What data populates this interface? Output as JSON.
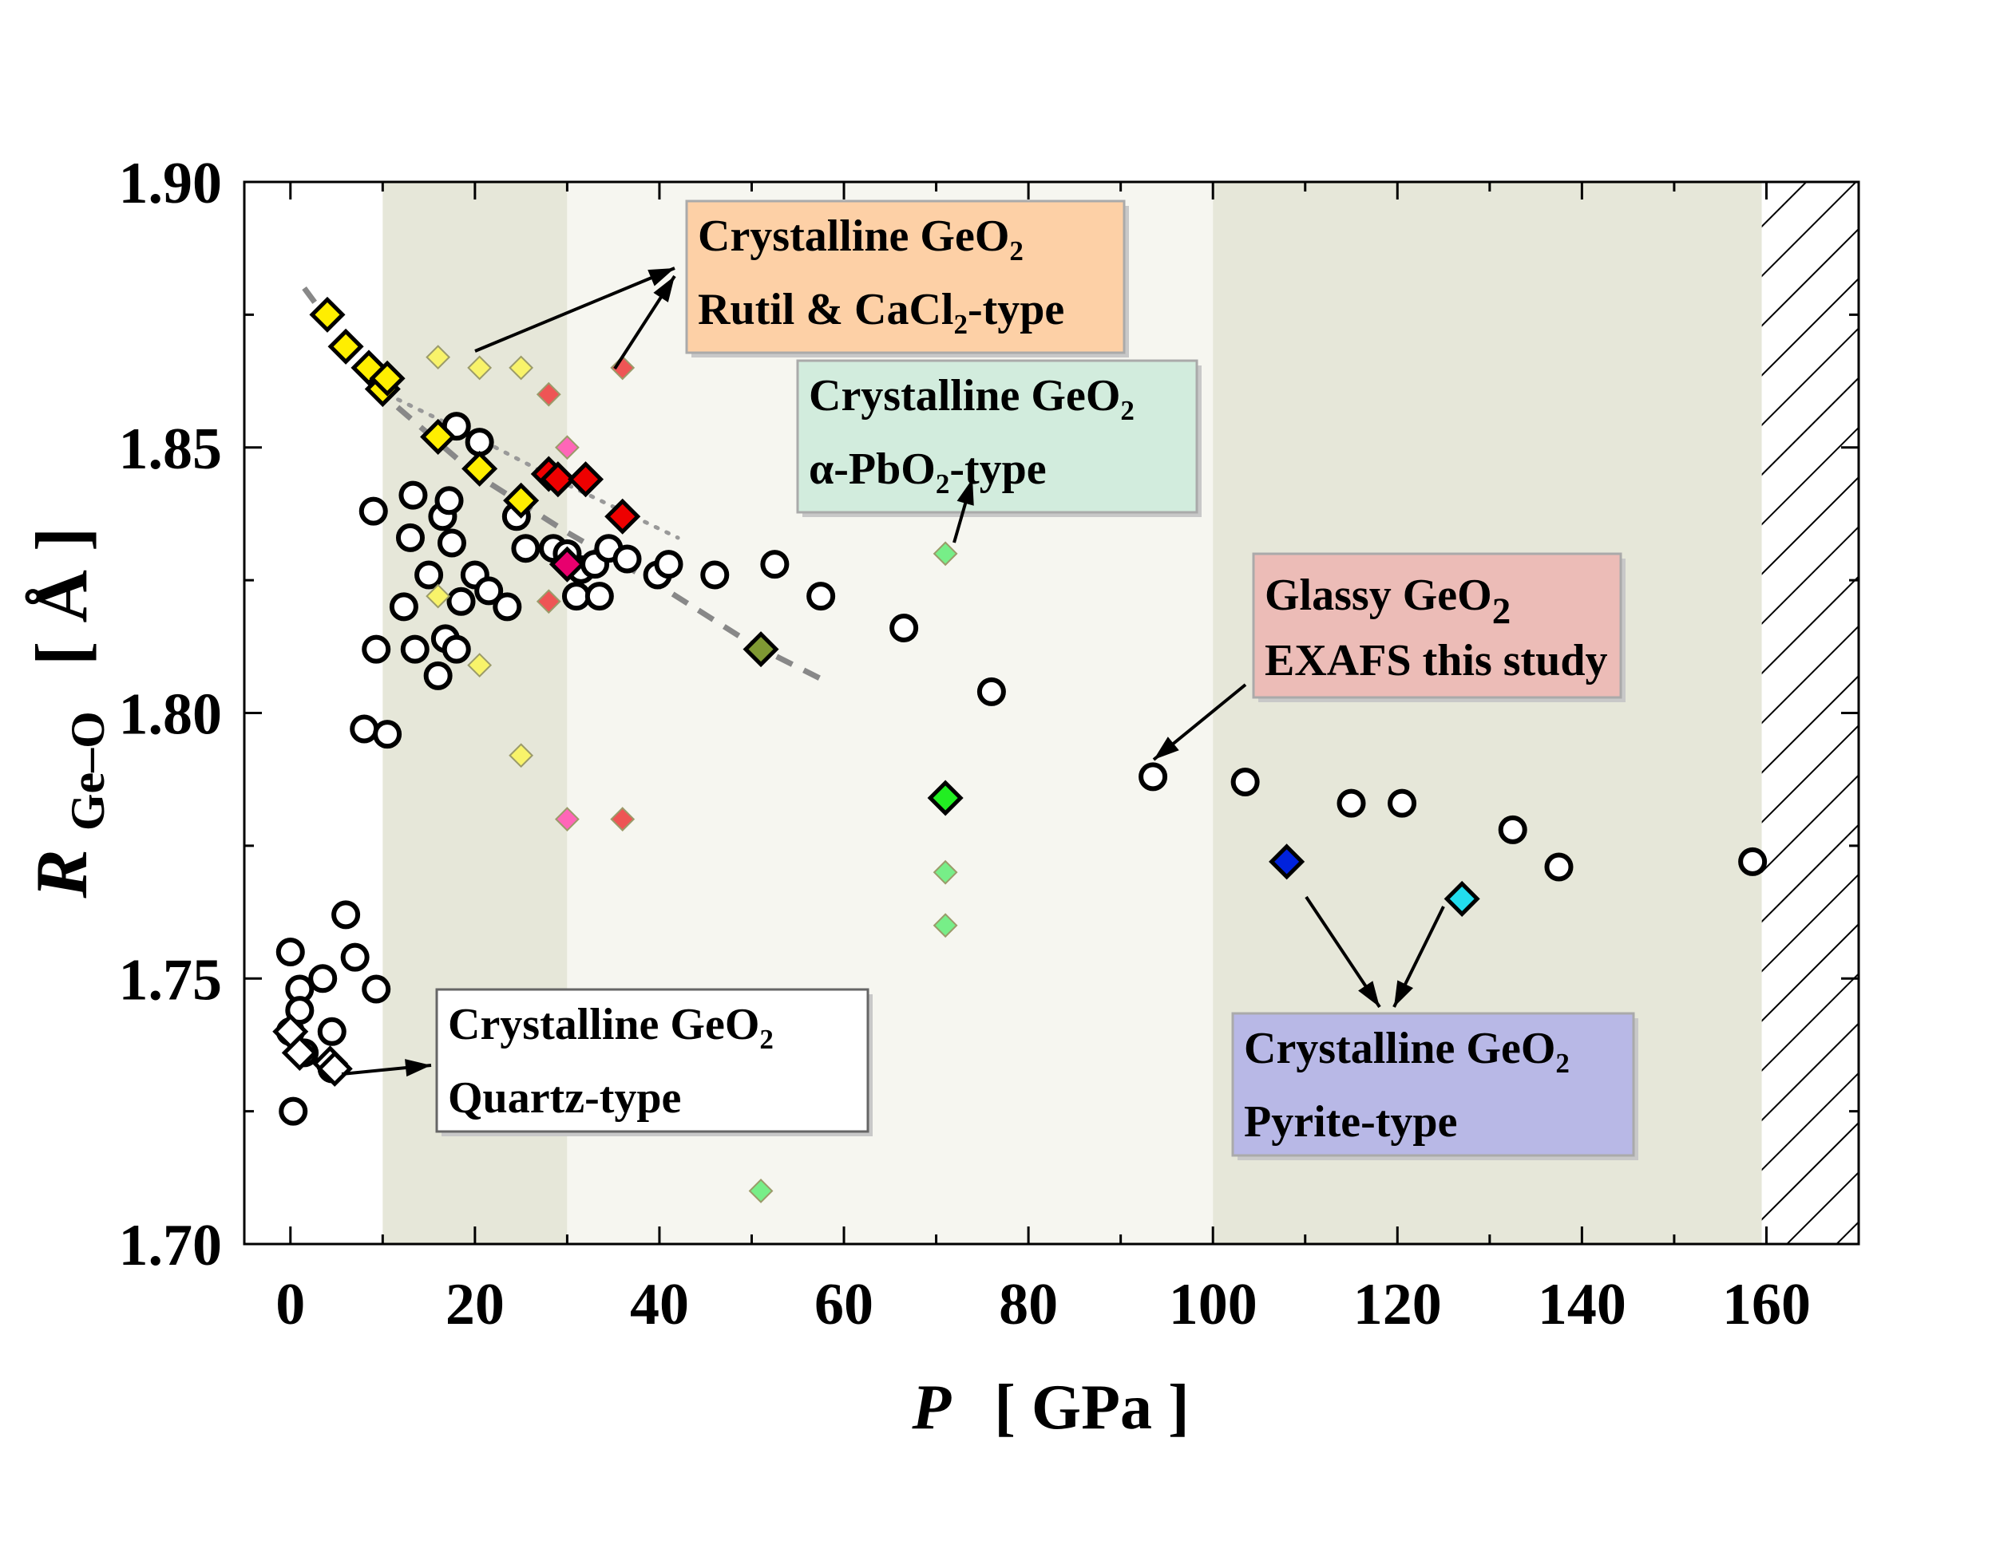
{
  "chart_data": {
    "type": "scatter",
    "xlabel": "P",
    "xunit": "[ GPa ]",
    "ylabel_main": "R",
    "ylabel_sub": "Ge–O",
    "yunit": "[ Å ]",
    "xlim": [
      -5,
      170
    ],
    "ylim": [
      1.7,
      1.9
    ],
    "xticks": [
      0,
      20,
      40,
      60,
      80,
      100,
      120,
      140,
      160
    ],
    "yticks": [
      1.7,
      1.75,
      1.8,
      1.85,
      1.9
    ],
    "ytick_labels": [
      "1.70",
      "1.75",
      "1.80",
      "1.85",
      "1.90"
    ],
    "regions": [
      {
        "name": "band-1",
        "x0": 10,
        "x1": 30,
        "color": "#e6e7d9"
      },
      {
        "name": "band-2",
        "x0": 30,
        "x1": 100,
        "color": "#f6f6f0"
      },
      {
        "name": "band-3",
        "x0": 100,
        "x1": 159.5,
        "color": "#e6e7d9"
      },
      {
        "name": "band-hatched",
        "x0": 159.5,
        "x1": 170,
        "color": "#ffffff",
        "hatched": true
      }
    ],
    "series": [
      {
        "name": "Glassy GeO2 (open circles)",
        "marker": "circle",
        "points": [
          [
            0,
            1.755
          ],
          [
            0,
            1.74
          ],
          [
            0.3,
            1.725
          ],
          [
            1,
            1.748
          ],
          [
            1,
            1.744
          ],
          [
            1.5,
            1.736
          ],
          [
            3.5,
            1.75
          ],
          [
            4.5,
            1.74
          ],
          [
            4.5,
            1.733
          ],
          [
            6,
            1.762
          ],
          [
            7,
            1.754
          ],
          [
            9.3,
            1.748
          ],
          [
            8,
            1.797
          ],
          [
            10.5,
            1.796
          ],
          [
            9.3,
            1.812
          ],
          [
            9,
            1.838
          ],
          [
            12.3,
            1.82
          ],
          [
            13,
            1.833
          ],
          [
            13.3,
            1.841
          ],
          [
            13.5,
            1.812
          ],
          [
            15,
            1.826
          ],
          [
            16,
            1.807
          ],
          [
            16.5,
            1.837
          ],
          [
            16.8,
            1.814
          ],
          [
            17.2,
            1.84
          ],
          [
            17.5,
            1.832
          ],
          [
            18,
            1.854
          ],
          [
            18,
            1.812
          ],
          [
            18.5,
            1.821
          ],
          [
            20,
            1.826
          ],
          [
            20.5,
            1.851
          ],
          [
            21.5,
            1.823
          ],
          [
            23.5,
            1.82
          ],
          [
            24.5,
            1.837
          ],
          [
            25.5,
            1.831
          ],
          [
            28.5,
            1.831
          ],
          [
            30,
            1.83
          ],
          [
            31,
            1.822
          ],
          [
            31.5,
            1.827
          ],
          [
            33,
            1.828
          ],
          [
            33.5,
            1.822
          ],
          [
            34.5,
            1.831
          ],
          [
            36.5,
            1.829
          ],
          [
            39.8,
            1.826
          ],
          [
            41,
            1.828
          ],
          [
            46,
            1.826
          ],
          [
            52.5,
            1.828
          ],
          [
            57.5,
            1.822
          ],
          [
            66.5,
            1.816
          ],
          [
            76,
            1.804
          ],
          [
            93.5,
            1.788
          ],
          [
            103.5,
            1.787
          ],
          [
            115,
            1.783
          ],
          [
            120.5,
            1.783
          ],
          [
            132.5,
            1.778
          ],
          [
            137.5,
            1.771
          ],
          [
            158.5,
            1.772
          ]
        ]
      },
      {
        "name": "Quartz-type (open diamonds)",
        "marker": "diamond",
        "points": [
          [
            0,
            1.74
          ],
          [
            1,
            1.736
          ],
          [
            4.3,
            1.734
          ],
          [
            4.8,
            1.733
          ]
        ]
      },
      {
        "name": "Rutil & CaCl2-type (yellow diamonds, bold)",
        "marker": "diamond",
        "color": "#ffee00",
        "points": [
          [
            4,
            1.875
          ],
          [
            6,
            1.869
          ],
          [
            8.5,
            1.865
          ],
          [
            10,
            1.861
          ],
          [
            10.5,
            1.863
          ],
          [
            16,
            1.852
          ],
          [
            20.5,
            1.846
          ],
          [
            25,
            1.84
          ]
        ]
      },
      {
        "name": "Rutil & CaCl2-type (yellow diamonds, light)",
        "marker": "diamond-small",
        "color": "#f8f36a",
        "points": [
          [
            16,
            1.867
          ],
          [
            20.5,
            1.865
          ],
          [
            25,
            1.865
          ],
          [
            16,
            1.822
          ],
          [
            20.5,
            1.809
          ],
          [
            25,
            1.792
          ]
        ]
      },
      {
        "name": "alpha-PbO2-type (red diamonds, bold)",
        "marker": "diamond",
        "color": "#ee0000",
        "points": [
          [
            28,
            1.845
          ],
          [
            29,
            1.844
          ],
          [
            32,
            1.844
          ],
          [
            36,
            1.837
          ]
        ]
      },
      {
        "name": "alpha-PbO2-type (red diamonds, light)",
        "marker": "diamond-small",
        "color": "#ee5555",
        "points": [
          [
            28,
            1.86
          ],
          [
            36,
            1.865
          ],
          [
            28,
            1.821
          ],
          [
            36,
            1.78
          ]
        ]
      },
      {
        "name": "pink diamonds",
        "marker": "diamond-small",
        "color": "#ff66b8",
        "points": [
          [
            30,
            1.85
          ],
          [
            30,
            1.827
          ],
          [
            30,
            1.78
          ]
        ]
      },
      {
        "name": "magenta diamond (bold)",
        "marker": "diamond",
        "color": "#e8006e",
        "points": [
          [
            30,
            1.828
          ]
        ]
      },
      {
        "name": "olive diamond",
        "marker": "diamond",
        "color": "#7f9933",
        "points": [
          [
            51,
            1.812
          ]
        ]
      },
      {
        "name": "green diamonds (bold)",
        "marker": "diamond",
        "color": "#22ee22",
        "points": [
          [
            71,
            1.784
          ]
        ]
      },
      {
        "name": "green diamonds (light)",
        "marker": "diamond-small",
        "color": "#77ee88",
        "points": [
          [
            71,
            1.83
          ],
          [
            71,
            1.77
          ],
          [
            71,
            1.76
          ],
          [
            51,
            1.71
          ]
        ]
      },
      {
        "name": "Pyrite-type (blue diamond)",
        "marker": "diamond",
        "color": "#0022dd",
        "points": [
          [
            108,
            1.772
          ]
        ]
      },
      {
        "name": "Pyrite-type (cyan diamond)",
        "marker": "diamond",
        "color": "#22ddee",
        "points": [
          [
            127,
            1.765
          ]
        ]
      }
    ],
    "trend_lines": [
      {
        "name": "dashed-trend",
        "style": "dashed",
        "points": [
          [
            1.5,
            1.88
          ],
          [
            10,
            1.86
          ],
          [
            20,
            1.845
          ],
          [
            30,
            1.834
          ],
          [
            40,
            1.824
          ],
          [
            50,
            1.813
          ],
          [
            58,
            1.806
          ]
        ]
      },
      {
        "name": "dotted-trend",
        "style": "dotted",
        "points": [
          [
            10.5,
            1.86
          ],
          [
            20,
            1.852
          ],
          [
            30,
            1.843
          ],
          [
            42,
            1.833
          ]
        ]
      }
    ],
    "annotations": [
      {
        "name": "rutil-box",
        "lines": [
          {
            "text": "Crystalline GeO",
            "sub": "2",
            "after": ""
          },
          {
            "text": "Rutil & CaCl",
            "sub": "2",
            "after": "-type"
          }
        ],
        "fill": "#fdd0a6",
        "stroke": "#aaaaaa"
      },
      {
        "name": "pbo2-box",
        "lines": [
          {
            "text": "Crystalline GeO",
            "sub": "2",
            "after": ""
          },
          {
            "text": "α-PbO",
            "sub": "2",
            "after": "-type"
          }
        ],
        "fill": "#d2ecdd",
        "stroke": "#aaaaaa"
      },
      {
        "name": "glassy-box",
        "lines": [
          {
            "text": "Glassy GeO",
            "sub": "2",
            "after": ""
          },
          {
            "text": "EXAFS this study",
            "sub": "",
            "after": ""
          }
        ],
        "fill": "#ecbcb7",
        "stroke": "#aaaaaa"
      },
      {
        "name": "quartz-box",
        "lines": [
          {
            "text": "Crystalline GeO",
            "sub": "2",
            "after": ""
          },
          {
            "text": "Quartz-type",
            "sub": "",
            "after": ""
          }
        ],
        "fill": "#ffffff",
        "stroke": "#666666"
      },
      {
        "name": "pyrite-box",
        "lines": [
          {
            "text": "Crystalline GeO",
            "sub": "2",
            "after": ""
          },
          {
            "text": "Pyrite-type",
            "sub": "",
            "after": ""
          }
        ],
        "fill": "#b8b8e6",
        "stroke": "#aaaaaa"
      }
    ]
  }
}
